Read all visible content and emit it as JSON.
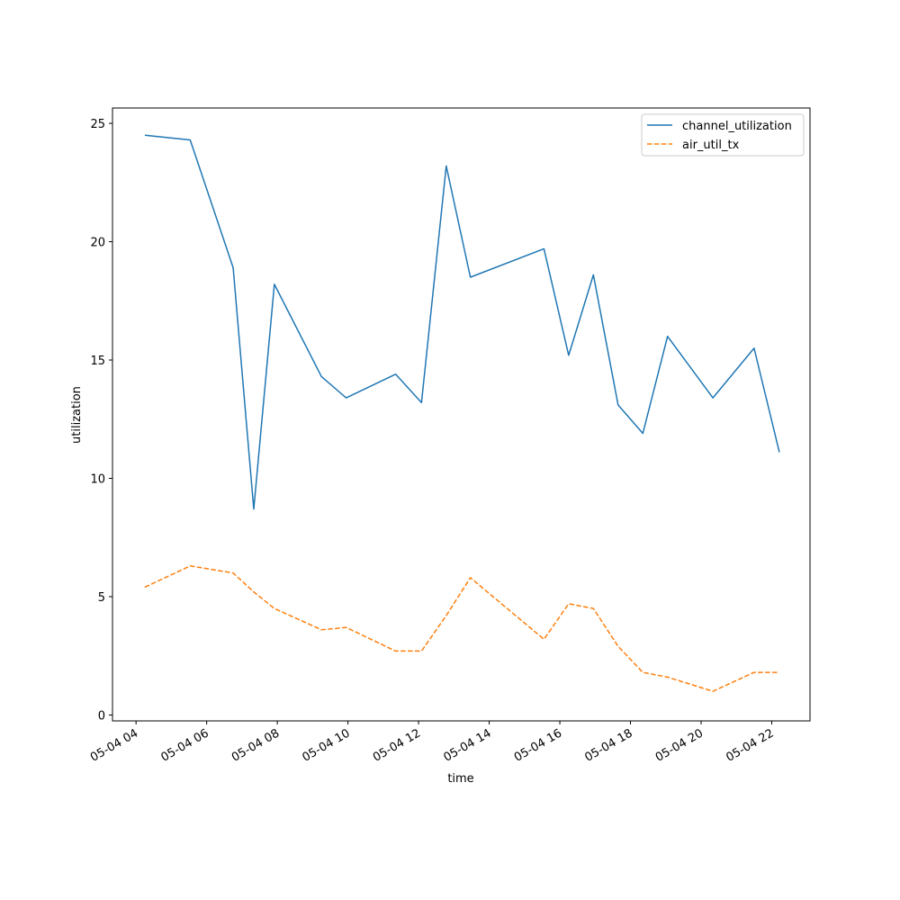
{
  "chart_data": {
    "type": "line",
    "title": "",
    "xlabel": "time",
    "ylabel": "utilization",
    "x_type": "datetime",
    "x": [
      "2024-05-04T04:15",
      "2024-05-04T05:32",
      "2024-05-04T06:45",
      "2024-05-04T07:20",
      "2024-05-04T07:55",
      "2024-05-04T09:15",
      "2024-05-04T09:57",
      "2024-05-04T11:21",
      "2024-05-04T12:05",
      "2024-05-04T12:47",
      "2024-05-04T13:28",
      "2024-05-04T15:33",
      "2024-05-04T16:15",
      "2024-05-04T16:57",
      "2024-05-04T17:39",
      "2024-05-04T18:21",
      "2024-05-04T19:03",
      "2024-05-04T20:20",
      "2024-05-04T21:30",
      "2024-05-04T22:13"
    ],
    "series": [
      {
        "name": "channel_utilization",
        "color": "#1f77b4",
        "linestyle": "solid",
        "values": [
          24.5,
          24.3,
          18.9,
          8.7,
          18.2,
          14.3,
          13.4,
          14.4,
          13.2,
          23.2,
          18.5,
          19.7,
          15.2,
          18.6,
          13.1,
          11.9,
          16.0,
          13.4,
          15.5,
          11.1
        ]
      },
      {
        "name": "air_util_tx",
        "color": "#ff7f0e",
        "linestyle": "dashed",
        "values": [
          5.4,
          6.3,
          6.0,
          5.2,
          4.5,
          3.6,
          3.7,
          2.7,
          2.7,
          4.2,
          5.8,
          3.2,
          4.7,
          4.5,
          2.9,
          1.8,
          1.6,
          1.0,
          1.8,
          1.8
        ]
      }
    ],
    "xlim": [
      "2024-05-04T03:20",
      "2024-05-04T23:05"
    ],
    "ylim": [
      -0.25,
      25.65
    ],
    "xticks": [
      {
        "value": "2024-05-04T04:00",
        "label": "05-04 04"
      },
      {
        "value": "2024-05-04T06:00",
        "label": "05-04 06"
      },
      {
        "value": "2024-05-04T08:00",
        "label": "05-04 08"
      },
      {
        "value": "2024-05-04T10:00",
        "label": "05-04 10"
      },
      {
        "value": "2024-05-04T12:00",
        "label": "05-04 12"
      },
      {
        "value": "2024-05-04T14:00",
        "label": "05-04 14"
      },
      {
        "value": "2024-05-04T16:00",
        "label": "05-04 16"
      },
      {
        "value": "2024-05-04T18:00",
        "label": "05-04 18"
      },
      {
        "value": "2024-05-04T20:00",
        "label": "05-04 20"
      },
      {
        "value": "2024-05-04T22:00",
        "label": "05-04 22"
      }
    ],
    "yticks": [
      0,
      5,
      10,
      15,
      20,
      25
    ],
    "grid": false,
    "legend": {
      "position": "top-right",
      "entries": [
        "channel_utilization",
        "air_util_tx"
      ]
    }
  }
}
